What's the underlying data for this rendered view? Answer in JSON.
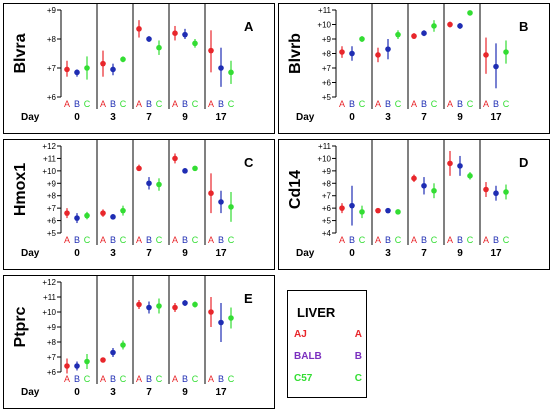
{
  "colors": {
    "A": "#e8262b",
    "B": "#1f2db3",
    "C": "#33dd33",
    "legend_B": "#7b2fbf",
    "frame": "#000000"
  },
  "chart_data": [
    {
      "type": "scatter",
      "panel_label": "A",
      "ylabel": "Blvra",
      "xlabel": "Day",
      "ylim": [
        6,
        9
      ],
      "yticks": [
        "+6",
        "+7",
        "+8",
        "+9"
      ],
      "days": [
        "0",
        "3",
        "7",
        "9",
        "17"
      ],
      "strains": [
        "A",
        "B",
        "C"
      ],
      "points": [
        [
          [
            6.95,
            6.7,
            7.25
          ],
          [
            6.85,
            6.7,
            6.95
          ],
          [
            7.0,
            6.6,
            7.4
          ]
        ],
        [
          [
            7.15,
            6.7,
            7.6
          ],
          [
            6.95,
            6.75,
            7.15
          ],
          [
            7.3,
            7.2,
            7.4
          ]
        ],
        [
          [
            8.35,
            8.05,
            8.65
          ],
          [
            8.0,
            7.9,
            8.1
          ],
          [
            7.7,
            7.45,
            7.95
          ]
        ],
        [
          [
            8.2,
            7.95,
            8.45
          ],
          [
            8.15,
            8.0,
            8.35
          ],
          [
            7.85,
            7.7,
            8.0
          ]
        ],
        [
          [
            7.6,
            6.85,
            8.3
          ],
          [
            7.0,
            6.35,
            7.7
          ],
          [
            6.85,
            6.45,
            7.25
          ]
        ]
      ]
    },
    {
      "type": "scatter",
      "panel_label": "B",
      "ylabel": "Blvrb",
      "xlabel": "Day",
      "ylim": [
        5,
        11
      ],
      "yticks": [
        "+5",
        "+6",
        "+7",
        "+8",
        "+9",
        "+10",
        "+11"
      ],
      "days": [
        "0",
        "3",
        "7",
        "9",
        "17"
      ],
      "strains": [
        "A",
        "B",
        "C"
      ],
      "points": [
        [
          [
            8.1,
            7.7,
            8.5
          ],
          [
            8.0,
            7.5,
            8.5
          ],
          [
            9.0,
            8.8,
            9.2
          ]
        ],
        [
          [
            7.9,
            7.4,
            8.4
          ],
          [
            8.3,
            7.6,
            9.0
          ],
          [
            9.3,
            9.0,
            9.6
          ]
        ],
        [
          [
            9.2,
            9.0,
            9.4
          ],
          [
            9.4,
            9.2,
            9.6
          ],
          [
            9.9,
            9.5,
            10.3
          ]
        ],
        [
          [
            10.0,
            9.8,
            10.2
          ],
          [
            9.9,
            9.7,
            10.1
          ],
          [
            10.8,
            10.7,
            10.9
          ]
        ],
        [
          [
            7.9,
            6.6,
            9.1
          ],
          [
            7.1,
            5.6,
            8.7
          ],
          [
            8.1,
            7.3,
            8.9
          ]
        ]
      ]
    },
    {
      "type": "scatter",
      "panel_label": "C",
      "ylabel": "Hmox1",
      "xlabel": "Day",
      "ylim": [
        5,
        12
      ],
      "yticks": [
        "+5",
        "+6",
        "+7",
        "+8",
        "+9",
        "+10",
        "+11",
        "+12"
      ],
      "days": [
        "0",
        "3",
        "7",
        "9",
        "17"
      ],
      "strains": [
        "A",
        "B",
        "C"
      ],
      "points": [
        [
          [
            6.6,
            6.2,
            7.0
          ],
          [
            6.2,
            5.8,
            6.6
          ],
          [
            6.4,
            6.1,
            6.7
          ]
        ],
        [
          [
            6.6,
            6.3,
            6.9
          ],
          [
            6.3,
            6.1,
            6.5
          ],
          [
            6.8,
            6.4,
            7.2
          ]
        ],
        [
          [
            10.2,
            10.0,
            10.5
          ],
          [
            9.0,
            8.5,
            9.5
          ],
          [
            8.9,
            8.4,
            9.4
          ]
        ],
        [
          [
            11.0,
            10.6,
            11.4
          ],
          [
            10.0,
            9.8,
            10.2
          ],
          [
            10.2,
            10.0,
            10.4
          ]
        ],
        [
          [
            8.2,
            6.6,
            9.8
          ],
          [
            7.5,
            6.6,
            8.4
          ],
          [
            7.1,
            5.9,
            8.3
          ]
        ]
      ]
    },
    {
      "type": "scatter",
      "panel_label": "D",
      "ylabel": "Cd14",
      "xlabel": "Day",
      "ylim": [
        4,
        11
      ],
      "yticks": [
        "+4",
        "+5",
        "+6",
        "+7",
        "+8",
        "+9",
        "+10",
        "+11"
      ],
      "days": [
        "0",
        "3",
        "7",
        "9",
        "17"
      ],
      "strains": [
        "A",
        "B",
        "C"
      ],
      "points": [
        [
          [
            6.0,
            5.6,
            6.4
          ],
          [
            6.2,
            4.6,
            7.8
          ],
          [
            5.7,
            5.2,
            6.2
          ]
        ],
        [
          [
            5.8,
            5.6,
            6.0
          ],
          [
            5.8,
            5.6,
            6.0
          ],
          [
            5.7,
            5.5,
            5.9
          ]
        ],
        [
          [
            8.4,
            8.1,
            8.7
          ],
          [
            7.8,
            7.1,
            8.5
          ],
          [
            7.4,
            6.8,
            8.0
          ]
        ],
        [
          [
            9.6,
            8.6,
            10.6
          ],
          [
            9.4,
            8.6,
            10.2
          ],
          [
            8.6,
            8.3,
            8.9
          ]
        ],
        [
          [
            7.5,
            6.9,
            8.1
          ],
          [
            7.2,
            6.6,
            7.8
          ],
          [
            7.3,
            6.7,
            7.9
          ]
        ]
      ]
    },
    {
      "type": "scatter",
      "panel_label": "E",
      "ylabel": "Ptprc",
      "xlabel": "Day",
      "ylim": [
        6,
        12
      ],
      "yticks": [
        "+6",
        "+7",
        "+8",
        "+9",
        "+10",
        "+11",
        "+12"
      ],
      "days": [
        "0",
        "3",
        "7",
        "9",
        "17"
      ],
      "strains": [
        "A",
        "B",
        "C"
      ],
      "points": [
        [
          [
            6.4,
            5.9,
            6.9
          ],
          [
            6.4,
            6.1,
            6.7
          ],
          [
            6.7,
            6.2,
            7.2
          ]
        ],
        [
          [
            6.8,
            6.7,
            6.9
          ],
          [
            7.3,
            7.0,
            7.6
          ],
          [
            7.8,
            7.5,
            8.1
          ]
        ],
        [
          [
            10.5,
            10.2,
            10.8
          ],
          [
            10.3,
            9.9,
            10.7
          ],
          [
            10.4,
            9.9,
            10.9
          ]
        ],
        [
          [
            10.3,
            10.0,
            10.6
          ],
          [
            10.6,
            10.4,
            10.8
          ],
          [
            10.5,
            10.3,
            10.7
          ]
        ],
        [
          [
            10.0,
            9.0,
            11.0
          ],
          [
            9.3,
            8.0,
            10.6
          ],
          [
            9.6,
            8.9,
            10.3
          ]
        ]
      ]
    }
  ],
  "legend": {
    "title": "LIVER",
    "items": [
      {
        "name": "AJ",
        "code": "A",
        "color": "#e8262b"
      },
      {
        "name": "BALB",
        "code": "B",
        "color": "#7b2fbf"
      },
      {
        "name": "C57",
        "code": "C",
        "color": "#33dd33"
      }
    ]
  }
}
